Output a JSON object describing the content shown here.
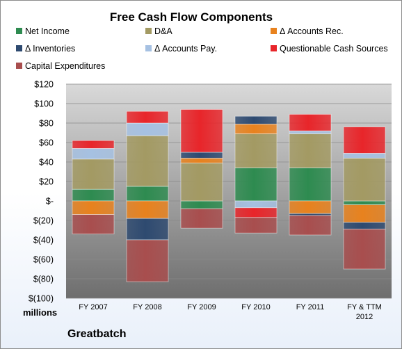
{
  "chart_data": {
    "type": "bar",
    "stacked": true,
    "title": "Free Cash Flow Components",
    "units_label": "millions",
    "company": "Greatbatch",
    "categories": [
      [
        "FY 2007"
      ],
      [
        "FY 2008"
      ],
      [
        "FY 2009"
      ],
      [
        "FY 2010"
      ],
      [
        "FY 2011"
      ],
      [
        "FY & TTM",
        "2012"
      ]
    ],
    "ylim": [
      -100,
      120
    ],
    "yticks": [
      120,
      100,
      80,
      60,
      40,
      20,
      0,
      -20,
      -40,
      -60,
      -80,
      -100
    ],
    "ytick_labels": [
      "$120",
      "$100",
      "$80",
      "$60",
      "$40",
      "$20",
      "$-",
      "$(20)",
      "$(40)",
      "$(60)",
      "$(80)",
      "$(100)"
    ],
    "grid": true,
    "legend_position": "top",
    "series": [
      {
        "name": "Net Income",
        "color": "#2e8b50",
        "values": [
          12,
          15,
          -8,
          34,
          34,
          -4
        ]
      },
      {
        "name": "D&A",
        "color": "#a39a63",
        "values": [
          31,
          52,
          39,
          35,
          35,
          44
        ]
      },
      {
        "name": "Δ Accounts Rec.",
        "color": "#e8821e",
        "values": [
          -14,
          -18,
          5,
          10,
          -13,
          -18
        ]
      },
      {
        "name": "Δ Inventories",
        "color": "#2e4a70",
        "values": [
          0,
          -22,
          6,
          8,
          -2,
          -7
        ]
      },
      {
        "name": "Δ Accounts Pay.",
        "color": "#a6c1e2",
        "values": [
          11,
          13,
          0,
          -7,
          3,
          5
        ]
      },
      {
        "name": "Questionable Cash Sources",
        "color": "#e8252a",
        "values": [
          8,
          12,
          44,
          -10,
          17,
          27
        ]
      },
      {
        "name": "Capital Expenditures",
        "color": "#a84e4e",
        "values": [
          -20,
          -43,
          -20,
          -16,
          -20,
          -41
        ]
      }
    ]
  }
}
